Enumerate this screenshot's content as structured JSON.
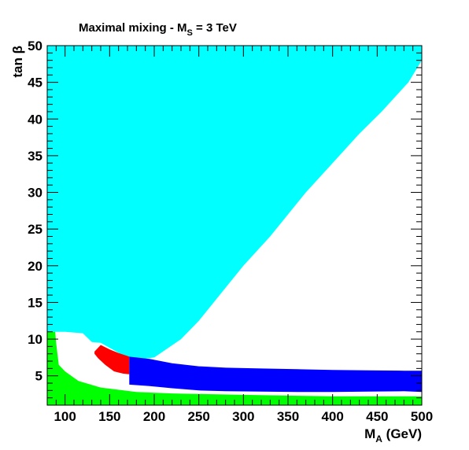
{
  "chart_data": {
    "type": "area",
    "title": "Maximal mixing - M",
    "title_subscript": "S",
    "title_suffix": " = 3 TeV",
    "xlabel": "M",
    "xlabel_subscript": "A",
    "xlabel_suffix": " (GeV)",
    "ylabel": "tan β",
    "xlim": [
      80,
      500
    ],
    "ylim": [
      1,
      50
    ],
    "xticks": [
      100,
      150,
      200,
      250,
      300,
      350,
      400,
      450,
      500
    ],
    "yticks": [
      5,
      10,
      15,
      20,
      25,
      30,
      35,
      40,
      45,
      50
    ],
    "grid": false,
    "series": [
      {
        "color": "#00ffff",
        "points": [
          [
            80,
            50
          ],
          [
            445,
            50
          ],
          [
            500,
            50
          ],
          [
            500,
            48
          ],
          [
            485,
            45
          ],
          [
            455,
            41
          ],
          [
            430,
            38
          ],
          [
            400,
            34
          ],
          [
            370,
            30
          ],
          [
            330,
            24
          ],
          [
            300,
            20
          ],
          [
            270,
            15.5
          ],
          [
            250,
            12.5
          ],
          [
            230,
            10
          ],
          [
            200,
            7.5
          ],
          [
            180,
            7.2
          ],
          [
            165,
            7.8
          ],
          [
            140,
            9.5
          ],
          [
            130,
            9.6
          ],
          [
            120,
            10.8
          ],
          [
            100,
            11
          ],
          [
            80,
            11
          ]
        ]
      },
      {
        "color": "#ff0000",
        "points": [
          [
            133,
            8.3
          ],
          [
            140,
            9.2
          ],
          [
            150,
            8.6
          ],
          [
            160,
            8.1
          ],
          [
            170,
            7.7
          ],
          [
            172,
            7.6
          ],
          [
            172,
            5.2
          ],
          [
            165,
            5.3
          ],
          [
            155,
            5.6
          ],
          [
            145,
            6.5
          ],
          [
            137,
            7.4
          ],
          [
            133,
            8.0
          ]
        ]
      },
      {
        "color": "#0000ff",
        "points": [
          [
            172,
            7.6
          ],
          [
            195,
            7.3
          ],
          [
            220,
            6.7
          ],
          [
            250,
            6.3
          ],
          [
            280,
            6.1
          ],
          [
            320,
            6.0
          ],
          [
            360,
            5.9
          ],
          [
            400,
            5.8
          ],
          [
            440,
            5.75
          ],
          [
            480,
            5.7
          ],
          [
            500,
            5.7
          ],
          [
            500,
            2.8
          ],
          [
            480,
            2.9
          ],
          [
            440,
            2.85
          ],
          [
            400,
            2.8
          ],
          [
            360,
            2.8
          ],
          [
            320,
            2.85
          ],
          [
            280,
            2.9
          ],
          [
            250,
            3.0
          ],
          [
            220,
            3.3
          ],
          [
            195,
            3.6
          ],
          [
            172,
            3.8
          ]
        ]
      },
      {
        "color": "#00ff00",
        "points": [
          [
            80,
            11
          ],
          [
            89,
            11
          ],
          [
            90,
            9.5
          ],
          [
            93,
            6.5
          ],
          [
            100,
            5.6
          ],
          [
            115,
            4.3
          ],
          [
            140,
            3.4
          ],
          [
            180,
            2.8
          ],
          [
            220,
            2.6
          ],
          [
            260,
            2.5
          ],
          [
            300,
            2.4
          ],
          [
            350,
            2.3
          ],
          [
            400,
            2.2
          ],
          [
            450,
            2.2
          ],
          [
            500,
            2.2
          ],
          [
            500,
            1
          ],
          [
            80,
            1
          ]
        ]
      }
    ]
  }
}
